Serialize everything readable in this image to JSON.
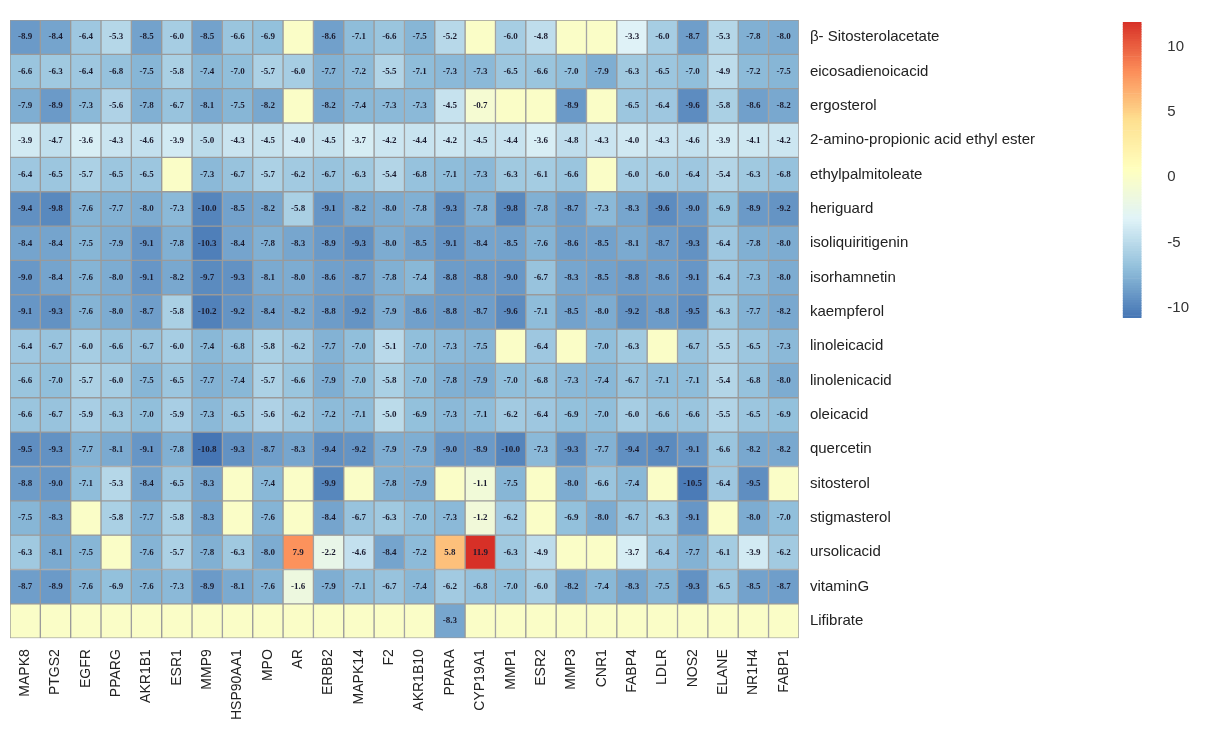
{
  "chart_data": {
    "type": "heatmap",
    "categories": [
      "MAPK8",
      "PTGS2",
      "EGFR",
      "PPARG",
      "AKR1B1",
      "ESR1",
      "MMP9",
      "HSP90AA1",
      "MPO",
      "AR",
      "ERBB2",
      "MAPK14",
      "F2",
      "AKR1B10",
      "PPARA",
      "CYP19A1",
      "MMP1",
      "ESR2",
      "MMP3",
      "CNR1",
      "FABP4",
      "LDLR",
      "NOS2",
      "ELANE",
      "NR1H4",
      "FABP1"
    ],
    "y_categories": [
      "β- Sitosterolacetate",
      "eicosadienoicacid",
      "ergosterol",
      "2-amino-propionic acid ethyl ester",
      "ethylpalmitoleate",
      "heriguard",
      "isoliquiritigenin",
      "isorhamnetin",
      "kaempferol",
      "linoleicacid",
      "linolenicacid",
      "oleicacid",
      "quercetin",
      "sitosterol",
      "stigmasterol",
      "ursolicacid",
      "vitaminG",
      "Lifibrate"
    ],
    "cells": [
      [
        -8.9,
        -8.4,
        -6.4,
        -5.3,
        -8.5,
        -6.0,
        -8.5,
        -6.6,
        -6.9,
        0,
        -8.6,
        -7.1,
        -6.6,
        -7.5,
        -5.2,
        0,
        -6.0,
        -4.8,
        0,
        0,
        -3.3,
        -6.0,
        -8.7,
        -5.3,
        -7.8,
        -8.0
      ],
      [
        -6.6,
        -6.3,
        -6.4,
        -6.8,
        -7.5,
        -5.8,
        -7.4,
        -7.0,
        -5.7,
        -6.0,
        -7.7,
        -7.2,
        -5.5,
        -7.1,
        -7.3,
        -7.3,
        -6.5,
        -6.6,
        -7.0,
        -7.9,
        -6.3,
        -6.5,
        -7.0,
        -4.9,
        -7.2,
        -7.5
      ],
      [
        -7.9,
        -8.9,
        -7.3,
        -5.6,
        -7.8,
        -6.7,
        -8.1,
        -7.5,
        -8.2,
        0,
        -8.2,
        -7.4,
        -7.3,
        -7.3,
        -4.5,
        -0.7,
        0,
        0,
        -8.9,
        0,
        -6.5,
        -6.4,
        -9.6,
        -5.8,
        -8.6,
        -8.2
      ],
      [
        -3.9,
        -4.7,
        -3.6,
        -4.3,
        -4.6,
        -3.9,
        -5.0,
        -4.3,
        -4.5,
        -4.0,
        -4.5,
        -3.7,
        -4.2,
        -4.4,
        -4.2,
        -4.5,
        -4.4,
        -3.6,
        -4.8,
        -4.3,
        -4.0,
        -4.3,
        -4.6,
        -3.9,
        -4.1,
        -4.2
      ],
      [
        -6.4,
        -6.5,
        -5.7,
        -6.5,
        -6.5,
        0,
        -7.3,
        -6.7,
        -5.7,
        -6.2,
        -6.7,
        -6.3,
        -5.4,
        -6.8,
        -7.1,
        -7.3,
        -6.3,
        -6.1,
        -6.6,
        0,
        -6.0,
        -6.0,
        -6.4,
        -5.4,
        -6.3,
        -6.8
      ],
      [
        -9.4,
        -9.8,
        -7.6,
        -7.7,
        -8.0,
        -7.3,
        -10.0,
        -8.5,
        -8.2,
        -5.8,
        -9.1,
        -8.2,
        -8.0,
        -7.8,
        -9.3,
        -7.8,
        -9.8,
        -7.8,
        -8.7,
        -7.3,
        -8.3,
        -9.6,
        -9.0,
        -6.9,
        -8.9,
        -9.2
      ],
      [
        -8.4,
        -8.4,
        -7.5,
        -7.9,
        -9.1,
        -7.8,
        -10.3,
        -8.4,
        -7.8,
        -8.3,
        -8.9,
        -9.3,
        -8.0,
        -8.5,
        -9.1,
        -8.4,
        -8.5,
        -7.6,
        -8.6,
        -8.5,
        -8.1,
        -8.7,
        -9.3,
        -6.4,
        -7.8,
        -8.0
      ],
      [
        -9.0,
        -8.4,
        -7.6,
        -8.0,
        -9.1,
        -8.2,
        -9.7,
        -9.3,
        -8.1,
        -8.0,
        -8.6,
        -8.7,
        -7.8,
        -7.4,
        -8.8,
        -8.8,
        -9.0,
        -6.7,
        -8.3,
        -8.5,
        -8.8,
        -8.6,
        -9.1,
        -6.4,
        -7.3,
        -8.0
      ],
      [
        -9.1,
        -9.3,
        -7.6,
        -8.0,
        -8.7,
        -5.8,
        -10.2,
        -9.2,
        -8.4,
        -8.2,
        -8.8,
        -9.2,
        -7.9,
        -8.6,
        -8.8,
        -8.7,
        -9.6,
        -7.1,
        -8.5,
        -8.0,
        -9.2,
        -8.8,
        -9.5,
        -6.3,
        -7.7,
        -8.2
      ],
      [
        -6.4,
        -6.7,
        -6.0,
        -6.6,
        -6.7,
        -6.0,
        -7.4,
        -6.8,
        -5.8,
        -6.2,
        -7.7,
        -7.0,
        -5.1,
        -7.0,
        -7.3,
        -7.5,
        0,
        -6.4,
        0,
        -7.0,
        -6.3,
        0,
        -6.7,
        -5.5,
        -6.5,
        -7.3
      ],
      [
        -6.6,
        -7.0,
        -5.7,
        -6.0,
        -7.5,
        -6.5,
        -7.7,
        -7.4,
        -5.7,
        -6.6,
        -7.9,
        -7.0,
        -5.8,
        -7.0,
        -7.8,
        -7.9,
        -7.0,
        -6.8,
        -7.3,
        -7.4,
        -6.7,
        -7.1,
        -7.1,
        -5.4,
        -6.8,
        -8.0
      ],
      [
        -6.6,
        -6.7,
        -5.9,
        -6.3,
        -7.0,
        -5.9,
        -7.3,
        -6.5,
        -5.6,
        -6.2,
        -7.2,
        -7.1,
        -5.0,
        -6.9,
        -7.3,
        -7.1,
        -6.2,
        -6.4,
        -6.9,
        -7.0,
        -6.0,
        -6.6,
        -6.6,
        -5.5,
        -6.5,
        -6.9
      ],
      [
        -9.5,
        -9.3,
        -7.7,
        -8.1,
        -9.1,
        -7.8,
        -10.8,
        -9.3,
        -8.7,
        -8.3,
        -9.4,
        -9.2,
        -7.9,
        -7.9,
        -9.0,
        -8.9,
        -10.0,
        -7.3,
        -9.3,
        -7.7,
        -9.4,
        -9.7,
        -9.1,
        -6.6,
        -8.2,
        -8.2
      ],
      [
        -8.8,
        -9.0,
        -7.1,
        -5.3,
        -8.4,
        -6.5,
        -8.3,
        0,
        -7.4,
        0,
        -9.9,
        0,
        -7.8,
        -7.9,
        0,
        -1.1,
        -7.5,
        0,
        -8.0,
        -6.6,
        -7.4,
        0,
        -10.5,
        -6.4,
        -9.5,
        0
      ],
      [
        -7.5,
        -8.3,
        0,
        -5.8,
        -7.7,
        -5.8,
        -8.3,
        0,
        -7.6,
        0,
        -8.4,
        -6.7,
        -6.3,
        -7.0,
        -7.3,
        -1.2,
        -6.2,
        0,
        -6.9,
        -8.0,
        -6.7,
        -6.3,
        -9.1,
        0,
        -8.0,
        -7.0
      ],
      [
        -6.3,
        -8.1,
        -7.5,
        0,
        -7.6,
        -5.7,
        -7.8,
        -6.3,
        -8.0,
        7.9,
        -2.2,
        -4.6,
        -8.4,
        -7.2,
        5.8,
        11.9,
        -6.3,
        -4.9,
        0,
        0,
        -3.7,
        -6.4,
        -7.7,
        -6.1,
        -3.9,
        -6.2
      ],
      [
        -8.7,
        -8.9,
        -7.6,
        -6.9,
        -7.6,
        -7.3,
        -8.9,
        -8.1,
        -7.6,
        -1.6,
        -7.9,
        -7.1,
        -6.7,
        -7.4,
        -6.2,
        -6.8,
        -7.0,
        -6.0,
        -8.2,
        -7.4,
        -8.3,
        -7.5,
        -9.3,
        -6.5,
        -8.5,
        -8.7
      ],
      [
        0,
        0,
        0,
        0,
        0,
        0,
        0,
        0,
        0,
        0,
        0,
        0,
        0,
        0,
        -8.3,
        0,
        0,
        0,
        0,
        0,
        0,
        0,
        0,
        0,
        0,
        0
      ]
    ],
    "cell_labels": [
      [
        "-8.9",
        "-8.4",
        "-6.4",
        "-5.3",
        "-8.5",
        "-6.0",
        "-8.5",
        "-6.6",
        "-6.9",
        null,
        "-8.6",
        "-7.1",
        "-6.6",
        "-7.5",
        "-5.2",
        null,
        "-6.0",
        "-4.8",
        null,
        null,
        "-3.3",
        "-6.0",
        "-8.7",
        "-5.3",
        "-7.8",
        "-8.0"
      ],
      [
        "-6.6",
        "-6.3",
        "-6.4",
        "-6.8",
        "-7.5",
        "-5.8",
        "-7.4",
        "-7.0",
        "-5.7",
        "-6.0",
        "-7.7",
        "-7.2",
        "-5.5",
        "-7.1",
        "-7.3",
        "-7.3",
        "-6.5",
        "-6.6",
        "-7.0",
        "-7.9",
        "-6.3",
        "-6.5",
        "-7.0",
        "-4.9",
        "-7.2",
        "-7.5"
      ],
      [
        "-7.9",
        "-8.9",
        "-7.3",
        "-5.6",
        "-7.8",
        "-6.7",
        "-8.1",
        "-7.5",
        "-8.2",
        null,
        "-8.2",
        "-7.4",
        "-7.3",
        "-7.3",
        "-4.5",
        "-0.7",
        null,
        null,
        "-8.9",
        null,
        "-6.5",
        "-6.4",
        "-9.6",
        "-5.8",
        "-8.6",
        "-8.2"
      ],
      [
        "-3.9",
        "-4.7",
        "-3.6",
        "-4.3",
        "-4.6",
        "-3.9",
        "-5.0",
        "-4.3",
        "-4.5",
        "-4.0",
        "-4.5",
        "-3.7",
        "-4.2",
        "-4.4",
        "-4.2",
        "-4.5",
        "-4.4",
        "-3.6",
        "-4.8",
        "-4.3",
        "-4.0",
        "-4.3",
        "-4.6",
        "-3.9",
        "-4.1",
        "-4.2"
      ],
      [
        "-6.4",
        "-6.5",
        "-5.7",
        "-6.5",
        "-6.5",
        null,
        "-7.3",
        "-6.7",
        "-5.7",
        "-6.2",
        "-6.7",
        "-6.3",
        "-5.4",
        "-6.8",
        "-7.1",
        "-7.3",
        "-6.3",
        "-6.1",
        "-6.6",
        null,
        "-6.0",
        "-6.0",
        "-6.4",
        "-5.4",
        "-6.3",
        "-6.8"
      ],
      [
        "-9.4",
        "-9.8",
        "-7.6",
        "-7.7",
        "-8.0",
        "-7.3",
        "-10.0",
        "-8.5",
        "-8.2",
        "-5.8",
        "-9.1",
        "-8.2",
        "-8.0",
        "-7.8",
        "-9.3",
        "-7.8",
        "-9.8",
        "-7.8",
        "-8.7",
        "-7.3",
        "-8.3",
        "-9.6",
        "-9.0",
        "-6.9",
        "-8.9",
        "-9.2"
      ],
      [
        "-8.4",
        "-8.4",
        "-7.5",
        "-7.9",
        "-9.1",
        "-7.8",
        "-10.3",
        "-8.4",
        "-7.8",
        "-8.3",
        "-8.9",
        "-9.3",
        "-8.0",
        "-8.5",
        "-9.1",
        "-8.4",
        "-8.5",
        "-7.6",
        "-8.6",
        "-8.5",
        "-8.1",
        "-8.7",
        "-9.3",
        "-6.4",
        "-7.8",
        "-8.0"
      ],
      [
        "-9.0",
        "-8.4",
        "-7.6",
        "-8.0",
        "-9.1",
        "-8.2",
        "-9.7",
        "-9.3",
        "-8.1",
        "-8.0",
        "-8.6",
        "-8.7",
        "-7.8",
        "-7.4",
        "-8.8",
        "-8.8",
        "-9.0",
        "-6.7",
        "-8.3",
        "-8.5",
        "-8.8",
        "-8.6",
        "-9.1",
        "-6.4",
        "-7.3",
        "-8.0"
      ],
      [
        "-9.1",
        "-9.3",
        "-7.6",
        "-8.0",
        "-8.7",
        "-5.8",
        "-10.2",
        "-9.2",
        "-8.4",
        "-8.2",
        "-8.8",
        "-9.2",
        "-7.9",
        "-8.6",
        "-8.8",
        "-8.7",
        "-9.6",
        "-7.1",
        "-8.5",
        "-8.0",
        "-9.2",
        "-8.8",
        "-9.5",
        "-6.3",
        "-7.7",
        "-8.2"
      ],
      [
        "-6.4",
        "-6.7",
        "-6.0",
        "-6.6",
        "-6.7",
        "-6.0",
        "-7.4",
        "-6.8",
        "-5.8",
        "-6.2",
        "-7.7",
        "-7.0",
        "-5.1",
        "-7.0",
        "-7.3",
        "-7.5",
        null,
        "-6.4",
        null,
        "-7.0",
        "-6.3",
        null,
        "-6.7",
        "-5.5",
        "-6.5",
        "-7.3"
      ],
      [
        "-6.6",
        "-7.0",
        "-5.7",
        "-6.0",
        "-7.5",
        "-6.5",
        "-7.7",
        "-7.4",
        "-5.7",
        "-6.6",
        "-7.9",
        "-7.0",
        "-5.8",
        "-7.0",
        "-7.8",
        "-7.9",
        "-7.0",
        "-6.8",
        "-7.3",
        "-7.4",
        "-6.7",
        "-7.1",
        "-7.1",
        "-5.4",
        "-6.8",
        "-8.0"
      ],
      [
        "-6.6",
        "-6.7",
        "-5.9",
        "-6.3",
        "-7.0",
        "-5.9",
        "-7.3",
        "-6.5",
        "-5.6",
        "-6.2",
        "-7.2",
        "-7.1",
        "-5.0",
        "-6.9",
        "-7.3",
        "-7.1",
        "-6.2",
        "-6.4",
        "-6.9",
        "-7.0",
        "-6.0",
        "-6.6",
        "-6.6",
        "-5.5",
        "-6.5",
        "-6.9"
      ],
      [
        "-9.5",
        "-9.3",
        "-7.7",
        "-8.1",
        "-9.1",
        "-7.8",
        "-10.8",
        "-9.3",
        "-8.7",
        "-8.3",
        "-9.4",
        "-9.2",
        "-7.9",
        "-7.9",
        "-9.0",
        "-8.9",
        "-10.0",
        "-7.3",
        "-9.3",
        "-7.7",
        "-9.4",
        "-9.7",
        "-9.1",
        "-6.6",
        "-8.2",
        "-8.2"
      ],
      [
        "-8.8",
        "-9.0",
        "-7.1",
        "-5.3",
        "-8.4",
        "-6.5",
        "-8.3",
        null,
        "-7.4",
        null,
        "-9.9",
        null,
        "-7.8",
        "-7.9",
        null,
        "-1.1",
        "-7.5",
        null,
        "-8.0",
        "-6.6",
        "-7.4",
        null,
        "-10.5",
        "-6.4",
        "-9.5",
        null
      ],
      [
        "-7.5",
        "-8.3",
        null,
        "-5.8",
        "-7.7",
        "-5.8",
        "-8.3",
        null,
        "-7.6",
        null,
        "-8.4",
        "-6.7",
        "-6.3",
        "-7.0",
        "-7.3",
        "-1.2",
        "-6.2",
        null,
        "-6.9",
        "-8.0",
        "-6.7",
        "-6.3",
        "-9.1",
        null,
        "-8.0",
        "-7.0"
      ],
      [
        "-6.3",
        "-8.1",
        "-7.5",
        null,
        "-7.6",
        "-5.7",
        "-7.8",
        "-6.3",
        "-8.0",
        "7.9",
        "-2.2",
        "-4.6",
        "-8.4",
        "-7.2",
        "5.8",
        "11.9",
        "-6.3",
        "-4.9",
        null,
        null,
        "-3.7",
        "-6.4",
        "-7.7",
        "-6.1",
        "-3.9",
        "-6.2"
      ],
      [
        "-8.7",
        "-8.9",
        "-7.6",
        "-6.9",
        "-7.6",
        "-7.3",
        "-8.9",
        "-8.1",
        "-7.6",
        "-1.6",
        "-7.9",
        "-7.1",
        "-6.7",
        "-7.4",
        "-6.2",
        "-6.8",
        "-7.0",
        "-6.0",
        "-8.2",
        "-7.4",
        "-8.3",
        "-7.5",
        "-9.3",
        "-6.5",
        "-8.5",
        "-8.7"
      ],
      [
        null,
        null,
        null,
        null,
        null,
        null,
        null,
        null,
        null,
        null,
        null,
        null,
        null,
        null,
        "-8.3",
        null,
        null,
        null,
        null,
        null,
        null,
        null,
        null,
        null,
        null,
        null
      ]
    ],
    "colors": [
      "#4575b4",
      "#91bfdb",
      "#e0f3f8",
      "#ffffbf",
      "#fee090",
      "#fc8d59",
      "#d73027"
    ],
    "clim": [
      -10.8,
      11.9
    ],
    "cticks": [
      -10,
      -5,
      0,
      5,
      10
    ]
  }
}
